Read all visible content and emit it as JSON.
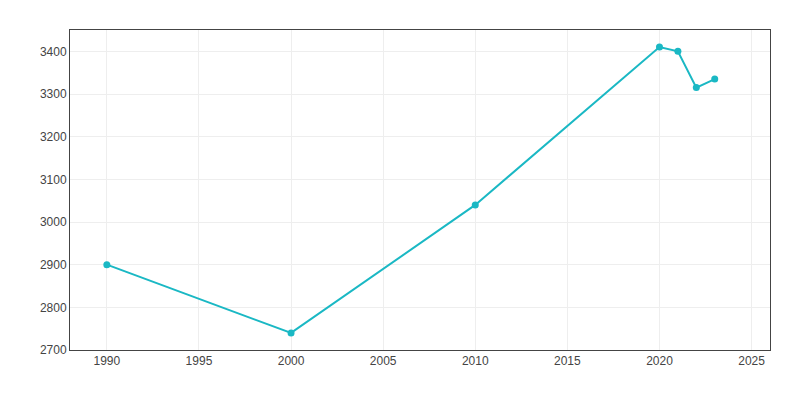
{
  "chart_data": {
    "type": "line",
    "x": [
      1990,
      2000,
      2010,
      2020,
      2021,
      2022,
      2023
    ],
    "values": [
      2900,
      2740,
      3040,
      3410,
      3400,
      3315,
      3335
    ],
    "color": "#1AB8C4",
    "marker": "circle",
    "xlim": [
      1988,
      2026
    ],
    "ylim": [
      2700,
      3450
    ],
    "xticks": [
      1990,
      1995,
      2000,
      2005,
      2010,
      2015,
      2020,
      2025
    ],
    "yticks": [
      2700,
      2800,
      2900,
      3000,
      3100,
      3200,
      3300,
      3400
    ],
    "grid": true
  }
}
